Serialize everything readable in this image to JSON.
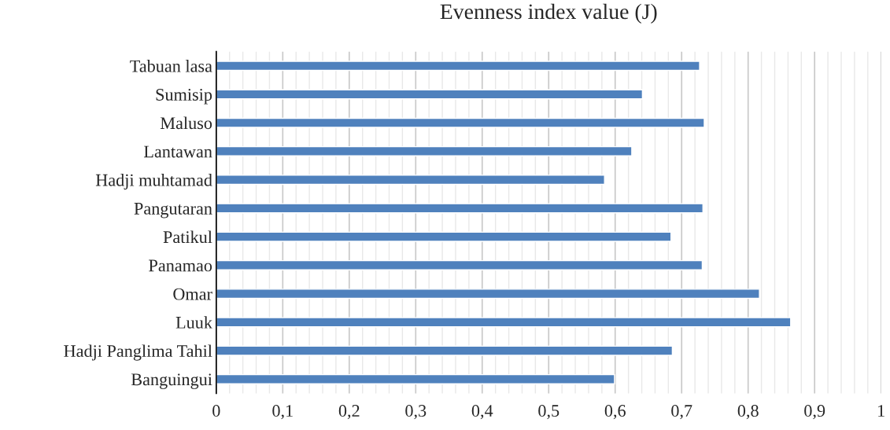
{
  "chart_data": {
    "type": "bar",
    "orientation": "horizontal",
    "title": "Evenness index value (J)",
    "categories": [
      "Tabuan lasa",
      "Sumisip",
      "Maluso",
      "Lantawan",
      "Hadji muhtamad",
      "Pangutaran",
      "Patikul",
      "Panamao",
      "Omar",
      "Luuk",
      "Hadji Panglima Tahil",
      "Banguingui"
    ],
    "values": [
      0.727,
      0.641,
      0.734,
      0.625,
      0.584,
      0.732,
      0.684,
      0.731,
      0.817,
      0.864,
      0.686,
      0.599
    ],
    "color": "#4f81bd",
    "xlim": [
      0,
      1
    ],
    "xticks": [
      0,
      {
        "value": 0.02,
        "label": null
      },
      {
        "value": 0.04,
        "label": null
      },
      {
        "value": 0.06,
        "label": null
      },
      {
        "value": 0.08,
        "label": null
      },
      {
        "value": 0.1,
        "label": "0,1"
      },
      {
        "value": 0.12,
        "label": null
      },
      {
        "value": 0.14,
        "label": null
      },
      {
        "value": 0.16,
        "label": null
      },
      {
        "value": 0.18,
        "label": null
      },
      {
        "value": 0.2,
        "label": "0,2"
      },
      {
        "value": 0.22,
        "label": null
      },
      {
        "value": 0.24,
        "label": null
      },
      {
        "value": 0.26,
        "label": null
      },
      {
        "value": 0.28,
        "label": null
      },
      {
        "value": 0.3,
        "label": "0,3"
      },
      {
        "value": 0.32,
        "label": null
      },
      {
        "value": 0.34,
        "label": null
      },
      {
        "value": 0.36,
        "label": null
      },
      {
        "value": 0.38,
        "label": null
      },
      {
        "value": 0.4,
        "label": "0,4"
      },
      {
        "value": 0.42,
        "label": null
      },
      {
        "value": 0.44,
        "label": null
      },
      {
        "value": 0.46,
        "label": null
      },
      {
        "value": 0.48,
        "label": null
      },
      {
        "value": 0.5,
        "label": "0,5"
      },
      {
        "value": 0.52,
        "label": null
      },
      {
        "value": 0.54,
        "label": null
      },
      {
        "value": 0.56,
        "label": null
      },
      {
        "value": 0.58,
        "label": null
      },
      {
        "value": 0.6,
        "label": "0,6"
      },
      {
        "value": 0.62,
        "label": null
      },
      {
        "value": 0.64,
        "label": null
      },
      {
        "value": 0.66,
        "label": null
      },
      {
        "value": 0.68,
        "label": null
      },
      {
        "value": 0.7,
        "label": "0,7"
      },
      {
        "value": 0.72,
        "label": null
      },
      {
        "value": 0.74,
        "label": null
      },
      {
        "value": 0.76,
        "label": null
      },
      {
        "value": 0.78,
        "label": null
      },
      {
        "value": 0.8,
        "label": "0,8"
      },
      {
        "value": 0.82,
        "label": null
      },
      {
        "value": 0.84,
        "label": null
      },
      {
        "value": 0.86,
        "label": null
      },
      {
        "value": 0.88,
        "label": null
      },
      {
        "value": 0.9,
        "label": "0,9"
      },
      {
        "value": 0.92,
        "label": null
      },
      {
        "value": 0.94,
        "label": null
      },
      {
        "value": 0.96,
        "label": null
      },
      {
        "value": 0.98,
        "label": null
      },
      1
    ],
    "grid": "x"
  }
}
